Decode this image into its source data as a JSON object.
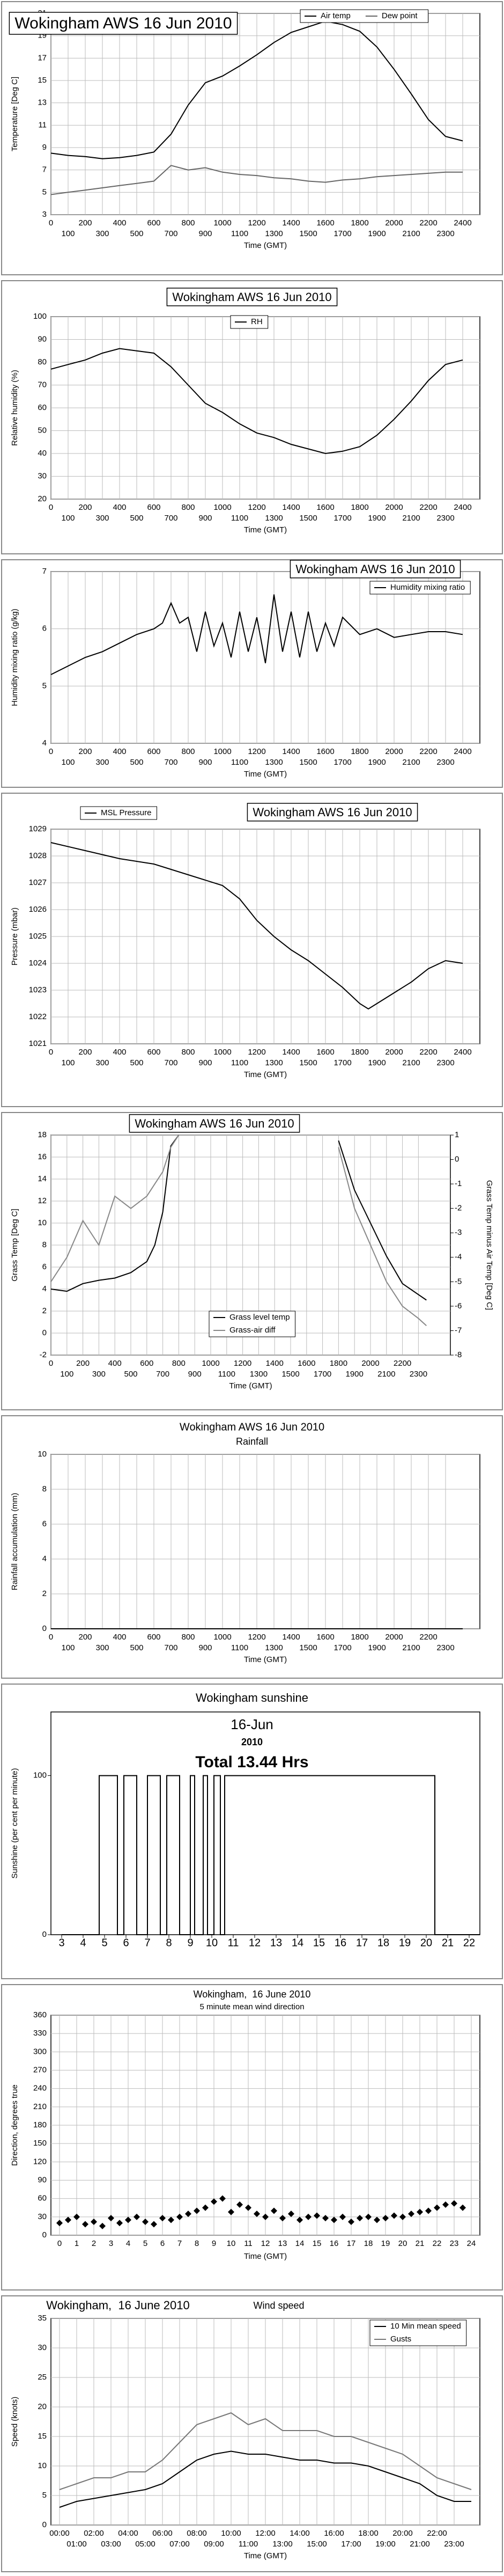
{
  "chart_data": [
    {
      "type": "line",
      "title": "Wokingham AWS 16 Jun 2010",
      "xlabel": "Time (GMT)",
      "ylabel": "Temperature [Deg C]",
      "x": [
        0,
        100,
        200,
        300,
        400,
        500,
        600,
        700,
        800,
        900,
        1000,
        1100,
        1200,
        1300,
        1400,
        1500,
        1600,
        1700,
        1800,
        1900,
        2000,
        2100,
        2200,
        2300,
        2400
      ],
      "series": [
        {
          "name": "Air temp",
          "color": "#000000",
          "values": [
            8.5,
            8.3,
            8.2,
            8.0,
            8.1,
            8.3,
            8.6,
            10.2,
            12.8,
            14.8,
            15.4,
            16.3,
            17.3,
            18.4,
            19.3,
            19.8,
            20.3,
            20.0,
            19.4,
            18.0,
            16.0,
            13.8,
            11.5,
            10.0,
            9.6
          ]
        },
        {
          "name": "Dew point",
          "color": "#666666",
          "values": [
            4.8,
            5.0,
            5.2,
            5.4,
            5.6,
            5.8,
            6.0,
            7.4,
            7.0,
            7.2,
            6.8,
            6.6,
            6.5,
            6.3,
            6.2,
            6.0,
            5.9,
            6.1,
            6.2,
            6.4,
            6.5,
            6.6,
            6.7,
            6.8,
            6.8
          ]
        }
      ],
      "xlim": [
        0,
        2500
      ],
      "xticks": [
        0,
        100,
        200,
        300,
        400,
        500,
        600,
        700,
        800,
        900,
        1000,
        1100,
        1200,
        1300,
        1400,
        1500,
        1600,
        1700,
        1800,
        1900,
        2000,
        2100,
        2200,
        2300,
        2400
      ],
      "ylim": [
        3,
        21
      ],
      "yticks": [
        3,
        5,
        7,
        9,
        11,
        13,
        15,
        17,
        19,
        21
      ],
      "grid": true
    },
    {
      "type": "line",
      "title": "Wokingham AWS 16 Jun 2010",
      "xlabel": "Time (GMT)",
      "ylabel": "Relative humidity (%)",
      "x": [
        0,
        100,
        200,
        300,
        400,
        500,
        600,
        700,
        800,
        900,
        1000,
        1100,
        1200,
        1300,
        1400,
        1500,
        1600,
        1700,
        1800,
        1900,
        2000,
        2100,
        2200,
        2300,
        2400
      ],
      "series": [
        {
          "name": "RH",
          "color": "#000000",
          "values": [
            77,
            79,
            81,
            84,
            86,
            85,
            84,
            78,
            70,
            62,
            58,
            53,
            49,
            47,
            44,
            42,
            40,
            41,
            43,
            48,
            55,
            63,
            72,
            79,
            81
          ]
        }
      ],
      "xlim": [
        0,
        2500
      ],
      "xticks": [
        0,
        100,
        200,
        300,
        400,
        500,
        600,
        700,
        800,
        900,
        1000,
        1100,
        1200,
        1300,
        1400,
        1500,
        1600,
        1700,
        1800,
        1900,
        2000,
        2100,
        2200,
        2300,
        2400
      ],
      "ylim": [
        20,
        100
      ],
      "yticks": [
        20,
        30,
        40,
        50,
        60,
        70,
        80,
        90,
        100
      ],
      "grid": true
    },
    {
      "type": "line",
      "title": "Wokingham AWS 16 Jun 2010",
      "xlabel": "Time (GMT)",
      "ylabel": "Humidity mixing ratio (g/kg)",
      "x": [
        0,
        100,
        200,
        300,
        400,
        500,
        600,
        650,
        700,
        750,
        800,
        850,
        900,
        950,
        1000,
        1050,
        1100,
        1150,
        1200,
        1250,
        1300,
        1350,
        1400,
        1450,
        1500,
        1550,
        1600,
        1650,
        1700,
        1800,
        1900,
        2000,
        2100,
        2200,
        2300,
        2400
      ],
      "series": [
        {
          "name": "Humidity mixing ratio",
          "color": "#000000",
          "values": [
            5.2,
            5.35,
            5.5,
            5.6,
            5.75,
            5.9,
            6.0,
            6.1,
            6.45,
            6.1,
            6.2,
            5.6,
            6.3,
            5.7,
            6.1,
            5.5,
            6.3,
            5.6,
            6.2,
            5.4,
            6.6,
            5.6,
            6.3,
            5.5,
            6.3,
            5.6,
            6.1,
            5.7,
            6.2,
            5.9,
            6.0,
            5.85,
            5.9,
            5.95,
            5.95,
            5.9
          ]
        }
      ],
      "xlim": [
        0,
        2500
      ],
      "xticks": [
        0,
        100,
        200,
        300,
        400,
        500,
        600,
        700,
        800,
        900,
        1000,
        1100,
        1200,
        1300,
        1400,
        1500,
        1600,
        1700,
        1800,
        1900,
        2000,
        2100,
        2200,
        2300,
        2400
      ],
      "ylim": [
        4,
        7
      ],
      "yticks": [
        4,
        5,
        6,
        7
      ],
      "grid": true
    },
    {
      "type": "line",
      "title": "Wokingham AWS 16 Jun 2010",
      "xlabel": "Time (GMT)",
      "ylabel": "Pressure (mbar)",
      "x": [
        0,
        200,
        400,
        600,
        800,
        1000,
        1100,
        1200,
        1300,
        1400,
        1500,
        1600,
        1700,
        1800,
        1850,
        1900,
        2000,
        2100,
        2200,
        2300,
        2400
      ],
      "series": [
        {
          "name": "MSL Pressure",
          "color": "#000000",
          "values": [
            1028.5,
            1028.2,
            1027.9,
            1027.7,
            1027.3,
            1026.9,
            1026.4,
            1025.6,
            1025.0,
            1024.5,
            1024.1,
            1023.6,
            1023.1,
            1022.5,
            1022.3,
            1022.5,
            1022.9,
            1023.3,
            1023.8,
            1024.1,
            1024.0
          ]
        }
      ],
      "xlim": [
        0,
        2500
      ],
      "xticks": [
        0,
        100,
        200,
        300,
        400,
        500,
        600,
        700,
        800,
        900,
        1000,
        1100,
        1200,
        1300,
        1400,
        1500,
        1600,
        1700,
        1800,
        1900,
        2000,
        2100,
        2200,
        2300,
        2400
      ],
      "ylim": [
        1021,
        1029
      ],
      "yticks": [
        1021,
        1022,
        1023,
        1024,
        1025,
        1026,
        1027,
        1028,
        1029
      ],
      "grid": true
    },
    {
      "type": "line",
      "title": "Wokingham AWS 16 Jun 2010",
      "xlabel": "Time (GMT)",
      "ylabel": "Grass Temp [Deg C]",
      "y2label": "Grass Temp minus Air Temp [Deg C]",
      "x": [
        0,
        100,
        200,
        300,
        400,
        500,
        600,
        650,
        700,
        750,
        800,
        900,
        1700,
        1800,
        1900,
        2000,
        2100,
        2200,
        2300,
        2350
      ],
      "series": [
        {
          "name": "Grass level temp",
          "color": "#000000",
          "values": [
            4,
            3.8,
            4.5,
            4.8,
            5,
            5.5,
            6.5,
            8,
            11,
            17,
            18,
            null,
            null,
            17.5,
            13,
            10,
            7,
            4.5,
            3.5,
            3
          ]
        },
        {
          "name": "Grass-air diff",
          "color": "#888888",
          "axis": "y2",
          "values": [
            -5,
            -4,
            -2.5,
            -3.5,
            -1.5,
            -2,
            -1.5,
            -1,
            -0.5,
            0.5,
            1,
            null,
            null,
            0.5,
            -2,
            -3.5,
            -5,
            -6,
            -6.5,
            -6.8
          ]
        }
      ],
      "xlim": [
        0,
        2500
      ],
      "xticks": [
        0,
        100,
        200,
        300,
        400,
        500,
        600,
        700,
        800,
        900,
        1000,
        1100,
        1200,
        1300,
        1400,
        1500,
        1600,
        1700,
        1800,
        1900,
        2000,
        2100,
        2200,
        2300
      ],
      "ylim": [
        -2,
        18
      ],
      "yticks": [
        -2,
        0,
        2,
        4,
        6,
        8,
        10,
        12,
        14,
        16,
        18
      ],
      "y2lim": [
        -8,
        1
      ],
      "y2ticks": [
        -8,
        -7,
        -6,
        -5,
        -4,
        -3,
        -2,
        -1,
        0,
        1
      ],
      "grid": true
    },
    {
      "type": "line",
      "title": "Wokingham AWS 16 Jun 2010",
      "subtitle": "Rainfall",
      "xlabel": "Time (GMT)",
      "ylabel": "Rainfall accumulation (mm)",
      "x": [
        0,
        2400
      ],
      "values": [
        0,
        0
      ],
      "color": "#000000",
      "xlim": [
        0,
        2500
      ],
      "xticks": [
        0,
        100,
        200,
        300,
        400,
        500,
        600,
        700,
        800,
        900,
        1000,
        1100,
        1200,
        1300,
        1400,
        1500,
        1600,
        1700,
        1800,
        1900,
        2000,
        2100,
        2200,
        2300
      ],
      "ylim": [
        0,
        10
      ],
      "yticks": [
        0,
        2,
        4,
        6,
        8,
        10
      ],
      "grid": true
    },
    {
      "type": "line",
      "title": "Wokingham sunshine",
      "subtitle": "16-Jun",
      "annotations": [
        "2010",
        "Total 13.44 Hrs"
      ],
      "ylabel": "Sunshine (per cent per minute)",
      "x": [
        3,
        4.75,
        4.75,
        5.6,
        5.6,
        5.9,
        5.9,
        6.5,
        6.5,
        7.0,
        7.0,
        7.6,
        7.6,
        7.9,
        7.9,
        8.5,
        8.5,
        9.0,
        9.0,
        9.2,
        9.2,
        9.6,
        9.6,
        9.8,
        9.8,
        10.1,
        10.1,
        10.4,
        10.4,
        10.6,
        10.6,
        20.4,
        20.4,
        22.5
      ],
      "values": [
        0,
        0,
        100,
        100,
        0,
        0,
        100,
        100,
        0,
        0,
        100,
        100,
        0,
        0,
        100,
        100,
        0,
        0,
        100,
        100,
        0,
        0,
        100,
        100,
        0,
        0,
        100,
        100,
        0,
        0,
        100,
        100,
        0,
        0
      ],
      "color": "#000000",
      "xlim": [
        2.5,
        22.5
      ],
      "xticks": [
        3,
        4,
        5,
        6,
        7,
        8,
        9,
        10,
        11,
        12,
        13,
        14,
        15,
        16,
        17,
        18,
        19,
        20,
        21,
        22
      ],
      "ylim": [
        0,
        140
      ],
      "yticks": [
        0,
        100
      ],
      "grid": false
    },
    {
      "type": "scatter",
      "title": "Wokingham,  16 June 2010",
      "subtitle": "5 minute mean wind direction",
      "xlabel": "Time (GMT)",
      "ylabel": "Direction, degrees true",
      "x": [
        0,
        0.5,
        1,
        1.5,
        2,
        2.5,
        3,
        3.5,
        4,
        4.5,
        5,
        5.5,
        6,
        6.5,
        7,
        7.5,
        8,
        8.5,
        9,
        9.5,
        10,
        10.5,
        11,
        11.5,
        12,
        12.5,
        13,
        13.5,
        14,
        14.5,
        15,
        15.5,
        16,
        16.5,
        17,
        17.5,
        18,
        18.5,
        19,
        19.5,
        20,
        20.5,
        21,
        21.5,
        22,
        22.5,
        23,
        23.5
      ],
      "values": [
        20,
        25,
        30,
        18,
        22,
        15,
        28,
        20,
        25,
        30,
        22,
        18,
        28,
        25,
        30,
        35,
        40,
        45,
        55,
        60,
        38,
        50,
        45,
        35,
        30,
        40,
        28,
        35,
        25,
        30,
        32,
        28,
        25,
        30,
        22,
        28,
        30,
        25,
        28,
        32,
        30,
        35,
        38,
        40,
        45,
        50,
        52,
        45
      ],
      "color": "#000000",
      "xlim": [
        -0.5,
        24.5
      ],
      "xticks": [
        0,
        1,
        2,
        3,
        4,
        5,
        6,
        7,
        8,
        9,
        10,
        11,
        12,
        13,
        14,
        15,
        16,
        17,
        18,
        19,
        20,
        21,
        22,
        23,
        24
      ],
      "ylim": [
        0,
        360
      ],
      "yticks": [
        0,
        30,
        60,
        90,
        120,
        150,
        180,
        210,
        240,
        270,
        300,
        330,
        360
      ],
      "grid": true
    },
    {
      "type": "line",
      "title": "Wokingham,  16 June 2010",
      "subtitle": "Wind speed",
      "xlabel": "Time (GMT)",
      "ylabel": "Speed (knots)",
      "x": [
        0,
        1,
        2,
        3,
        4,
        5,
        6,
        7,
        8,
        9,
        10,
        11,
        12,
        13,
        14,
        15,
        16,
        17,
        18,
        19,
        20,
        21,
        22,
        23,
        24
      ],
      "series": [
        {
          "name": "10 Min mean speed",
          "color": "#000000",
          "values": [
            3,
            4,
            4.5,
            5,
            5.5,
            6,
            7,
            9,
            11,
            12,
            12.5,
            12,
            12,
            11.5,
            11,
            11,
            10.5,
            10.5,
            10,
            9,
            8,
            7,
            5,
            4,
            4
          ]
        },
        {
          "name": "Gusts",
          "color": "#777777",
          "values": [
            6,
            7,
            8,
            8,
            9,
            9,
            11,
            14,
            17,
            18,
            19,
            17,
            18,
            16,
            16,
            16,
            15,
            15,
            14,
            13,
            12,
            10,
            8,
            7,
            6
          ]
        }
      ],
      "xlim": [
        -0.5,
        24.5
      ],
      "xticks": [
        {
          "value": 0,
          "label": "00:00"
        },
        {
          "value": 1,
          "label": "01:00"
        },
        {
          "value": 2,
          "label": "02:00"
        },
        {
          "value": 3,
          "label": "03:00"
        },
        {
          "value": 4,
          "label": "04:00"
        },
        {
          "value": 5,
          "label": "05:00"
        },
        {
          "value": 6,
          "label": "06:00"
        },
        {
          "value": 7,
          "label": "07:00"
        },
        {
          "value": 8,
          "label": "08:00"
        },
        {
          "value": 9,
          "label": "09:00"
        },
        {
          "value": 10,
          "label": "10:00"
        },
        {
          "value": 11,
          "label": "11:00"
        },
        {
          "value": 12,
          "label": "12:00"
        },
        {
          "value": 13,
          "label": "13:00"
        },
        {
          "value": 14,
          "label": "14:00"
        },
        {
          "value": 15,
          "label": "15:00"
        },
        {
          "value": 16,
          "label": "16:00"
        },
        {
          "value": 17,
          "label": "17:00"
        },
        {
          "value": 18,
          "label": "18:00"
        },
        {
          "value": 19,
          "label": "19:00"
        },
        {
          "value": 20,
          "label": "20:00"
        },
        {
          "value": 21,
          "label": "21:00"
        },
        {
          "value": 22,
          "label": "22:00"
        },
        {
          "value": 23,
          "label": "23:00"
        }
      ],
      "ylim": [
        0,
        35
      ],
      "yticks": [
        0,
        5,
        10,
        15,
        20,
        25,
        30,
        35
      ],
      "grid": true
    }
  ]
}
